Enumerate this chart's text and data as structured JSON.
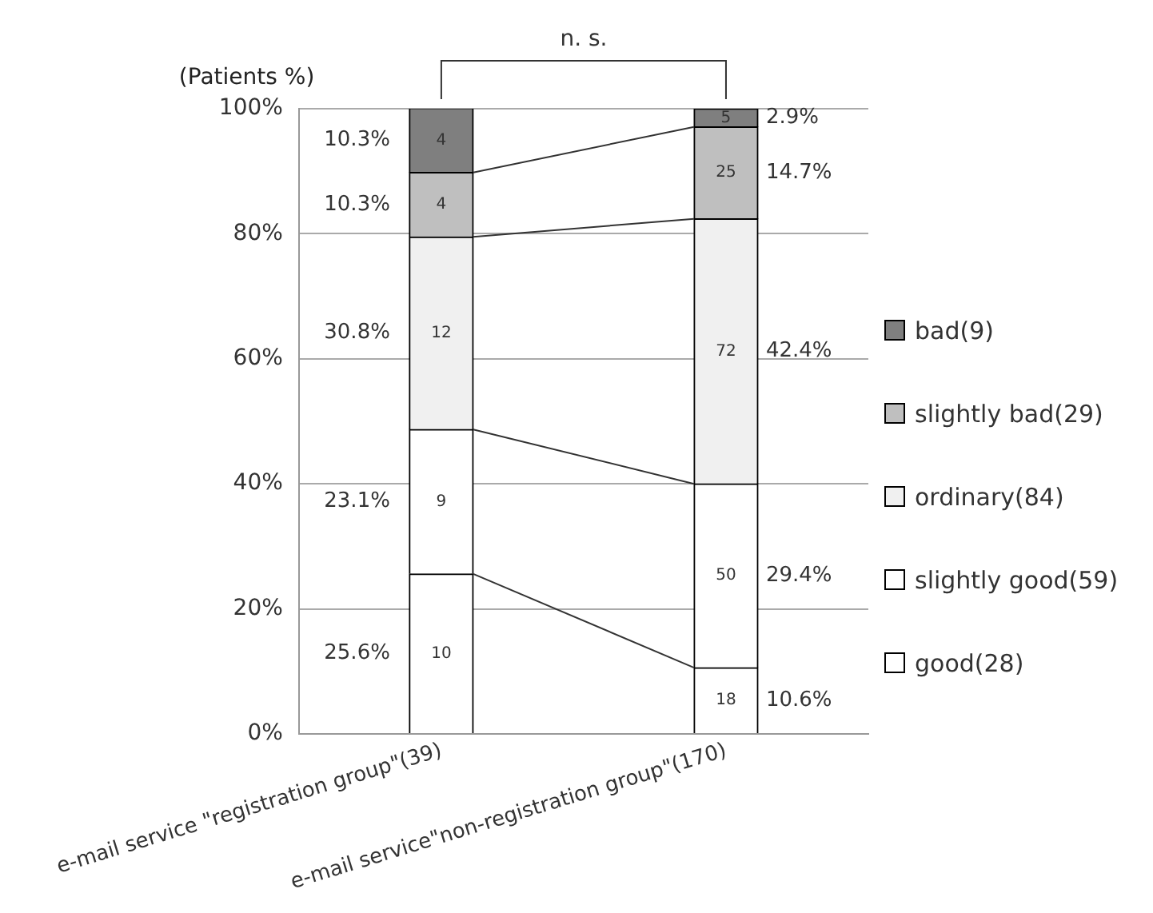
{
  "chart_data": {
    "type": "bar",
    "stacked": true,
    "ylabel": "(Patients %)",
    "categories": [
      "e-mail service \"registration group\"(39)",
      "e-mail service\"non-registration group\"(170)"
    ],
    "series": [
      {
        "name": "good(28)",
        "color": "#ffffff",
        "values": [
          25.6,
          10.6
        ]
      },
      {
        "name": "slightly good(59)",
        "color": "#ffffff",
        "values": [
          23.1,
          29.4
        ]
      },
      {
        "name": "ordinary(84)",
        "color": "#f0f0f0",
        "values": [
          30.8,
          42.4
        ]
      },
      {
        "name": "slightly bad(29)",
        "color": "#bfbfbf",
        "values": [
          10.3,
          14.7
        ]
      },
      {
        "name": "bad(9)",
        "color": "#7f7f7f",
        "values": [
          10.3,
          2.9
        ]
      }
    ],
    "ylim": [
      0,
      100
    ],
    "yticks": [
      {
        "value": 0,
        "label": "0%"
      },
      {
        "value": 20,
        "label": "20%"
      },
      {
        "value": 40,
        "label": "40%"
      },
      {
        "value": 60,
        "label": "60%"
      },
      {
        "value": 80,
        "label": "80%"
      },
      {
        "value": 100,
        "label": "100%"
      }
    ],
    "grid": "y",
    "legend": "right",
    "annotations": [
      "n. s.",
      "25.6%",
      "23.1%",
      "30.8%",
      "10.3%",
      "10.3%",
      "10.6%",
      "29.4%",
      "42.4%",
      "14.7%",
      "2.9%",
      "10",
      "9",
      "12",
      "4",
      "4",
      "18",
      "50",
      "72",
      "25",
      "5"
    ]
  }
}
